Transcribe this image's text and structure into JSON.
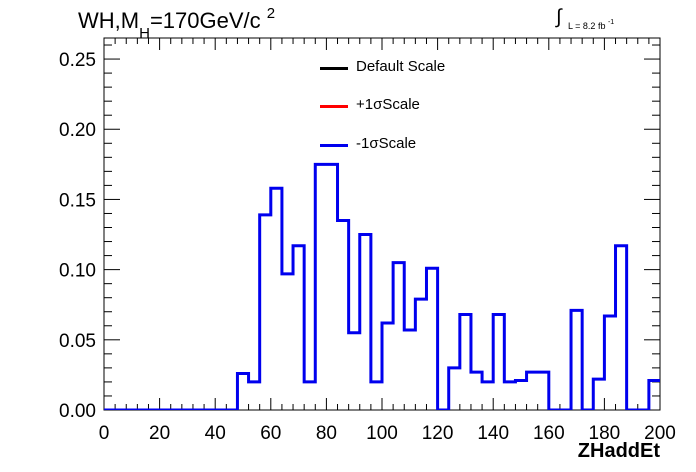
{
  "title": {
    "main": "WH,M",
    "sub": "H",
    "rest": "=170GeV/c",
    "sup": "2"
  },
  "luminosity": {
    "integral": "∫",
    "text": "L = 8.2 fb",
    "sup": "-1"
  },
  "chart_data": {
    "type": "line",
    "xlabel": "ZHaddEt",
    "ylabel": "",
    "xlim": [
      0,
      200
    ],
    "ylim": [
      0,
      0.265
    ],
    "x_ticks": [
      "0",
      "20",
      "40",
      "60",
      "80",
      "100",
      "120",
      "140",
      "160",
      "180",
      "200"
    ],
    "y_ticks": [
      "0.00",
      "0.05",
      "0.10",
      "0.15",
      "0.20",
      "0.25"
    ],
    "bin_edges": [
      0,
      5,
      10,
      15,
      20,
      25,
      30,
      35,
      40,
      45,
      48,
      52,
      56,
      60,
      64,
      68,
      72,
      76,
      80,
      84,
      88,
      92,
      96,
      100,
      104,
      108,
      112,
      116,
      120,
      124,
      128,
      132,
      136,
      140,
      144,
      148,
      152,
      156,
      160,
      164,
      168,
      172,
      176,
      180,
      184,
      188,
      192,
      196,
      200
    ],
    "legend": [
      {
        "name": "Default Scale",
        "color": "#000000"
      },
      {
        "name": "+1σScale",
        "color": "#ff0000"
      },
      {
        "name": "-1σScale",
        "color": "#0000ee"
      }
    ],
    "series": [
      {
        "name": "-1σScale",
        "color": "#0000ee",
        "values": [
          0,
          0,
          0,
          0,
          0,
          0,
          0,
          0,
          0,
          0,
          0.026,
          0.02,
          0.139,
          0.158,
          0.097,
          0.117,
          0.02,
          0.175,
          0.175,
          0.135,
          0.055,
          0.125,
          0.02,
          0.062,
          0.105,
          0.057,
          0.079,
          0.101,
          0,
          0.03,
          0.068,
          0.027,
          0.02,
          0.068,
          0.02,
          0.021,
          0.027,
          0.027,
          0,
          0,
          0.071,
          0,
          0.022,
          0.067,
          0.117,
          0,
          0,
          0.021
        ]
      }
    ]
  }
}
